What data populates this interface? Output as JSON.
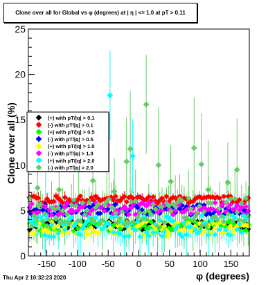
{
  "chart_data": {
    "type": "scatter",
    "title": "Clone  over all for Global vs φ (degrees) at | η | <= 1.0 at pT > 0.11",
    "xlabel": "φ (degrees)",
    "ylabel": "Clone  over all (%)",
    "xlim": [
      -180,
      180
    ],
    "ylim": [
      0,
      25
    ],
    "x_ticks": [
      -150,
      -100,
      -50,
      0,
      50,
      100,
      150
    ],
    "y_ticks": [
      0,
      5,
      10,
      15,
      20,
      25
    ],
    "legend_position": "left",
    "grid": false,
    "series": [
      {
        "name": "(+) with pT/|q| > 0.1",
        "color": "#000000",
        "marker": "diamond",
        "baseline": 3.4,
        "spread": 0.5,
        "err": 0.5
      },
      {
        "name": "(-) with pT/|q| > 0.1",
        "color": "#ff0000",
        "marker": "diamond",
        "baseline": 6.2,
        "spread": 0.4,
        "err": 0.5
      },
      {
        "name": "(+) with pT/|q| > 0.5",
        "color": "#00ff00",
        "marker": "diamond",
        "baseline": 3.3,
        "spread": 0.6,
        "err": 0.7
      },
      {
        "name": "(-) with pT/|q| > 0.5",
        "color": "#0000ff",
        "marker": "diamond",
        "baseline": 5.1,
        "spread": 0.6,
        "err": 0.7
      },
      {
        "name": "(+) with pT/|q| > 1.0",
        "color": "#ffff00",
        "marker": "diamond",
        "baseline": 3.1,
        "spread": 0.7,
        "err": 0.8
      },
      {
        "name": "(-) with pT/|q| > 1.0",
        "color": "#ff00ff",
        "marker": "diamond",
        "baseline": 5.2,
        "spread": 0.7,
        "err": 0.8
      },
      {
        "name": "(+) with pT/|q| > 2.0",
        "color": "#00ffff",
        "marker": "diamond",
        "baseline": 3.3,
        "spread": 1.2,
        "err": 1.8,
        "outliers": [
          [
            -47,
            17.7
          ],
          [
            -152,
            4.5
          ],
          [
            -10,
            11.0
          ]
        ]
      },
      {
        "name": "(-) with pT/|q| > 2.0",
        "color": "#66cc66",
        "marker": "diamond",
        "baseline": 4.8,
        "spread": 1.6,
        "err": 2.5,
        "outliers": [
          [
            -165,
            7.5
          ],
          [
            -98,
            9.5
          ],
          [
            -75,
            8.3
          ],
          [
            -20,
            10.4
          ],
          [
            -14,
            11.8
          ],
          [
            12,
            16.7
          ],
          [
            32,
            10.0
          ],
          [
            90,
            11.9
          ],
          [
            102,
            10.1
          ],
          [
            113,
            7.3
          ],
          [
            145,
            8.1
          ],
          [
            160,
            9.5
          ],
          [
            -40,
            7.1
          ],
          [
            52,
            8.2
          ],
          [
            -130,
            7.3
          ]
        ]
      }
    ]
  },
  "footer": {
    "timestamp": "Thu Apr  2 10:32:23 2020"
  }
}
